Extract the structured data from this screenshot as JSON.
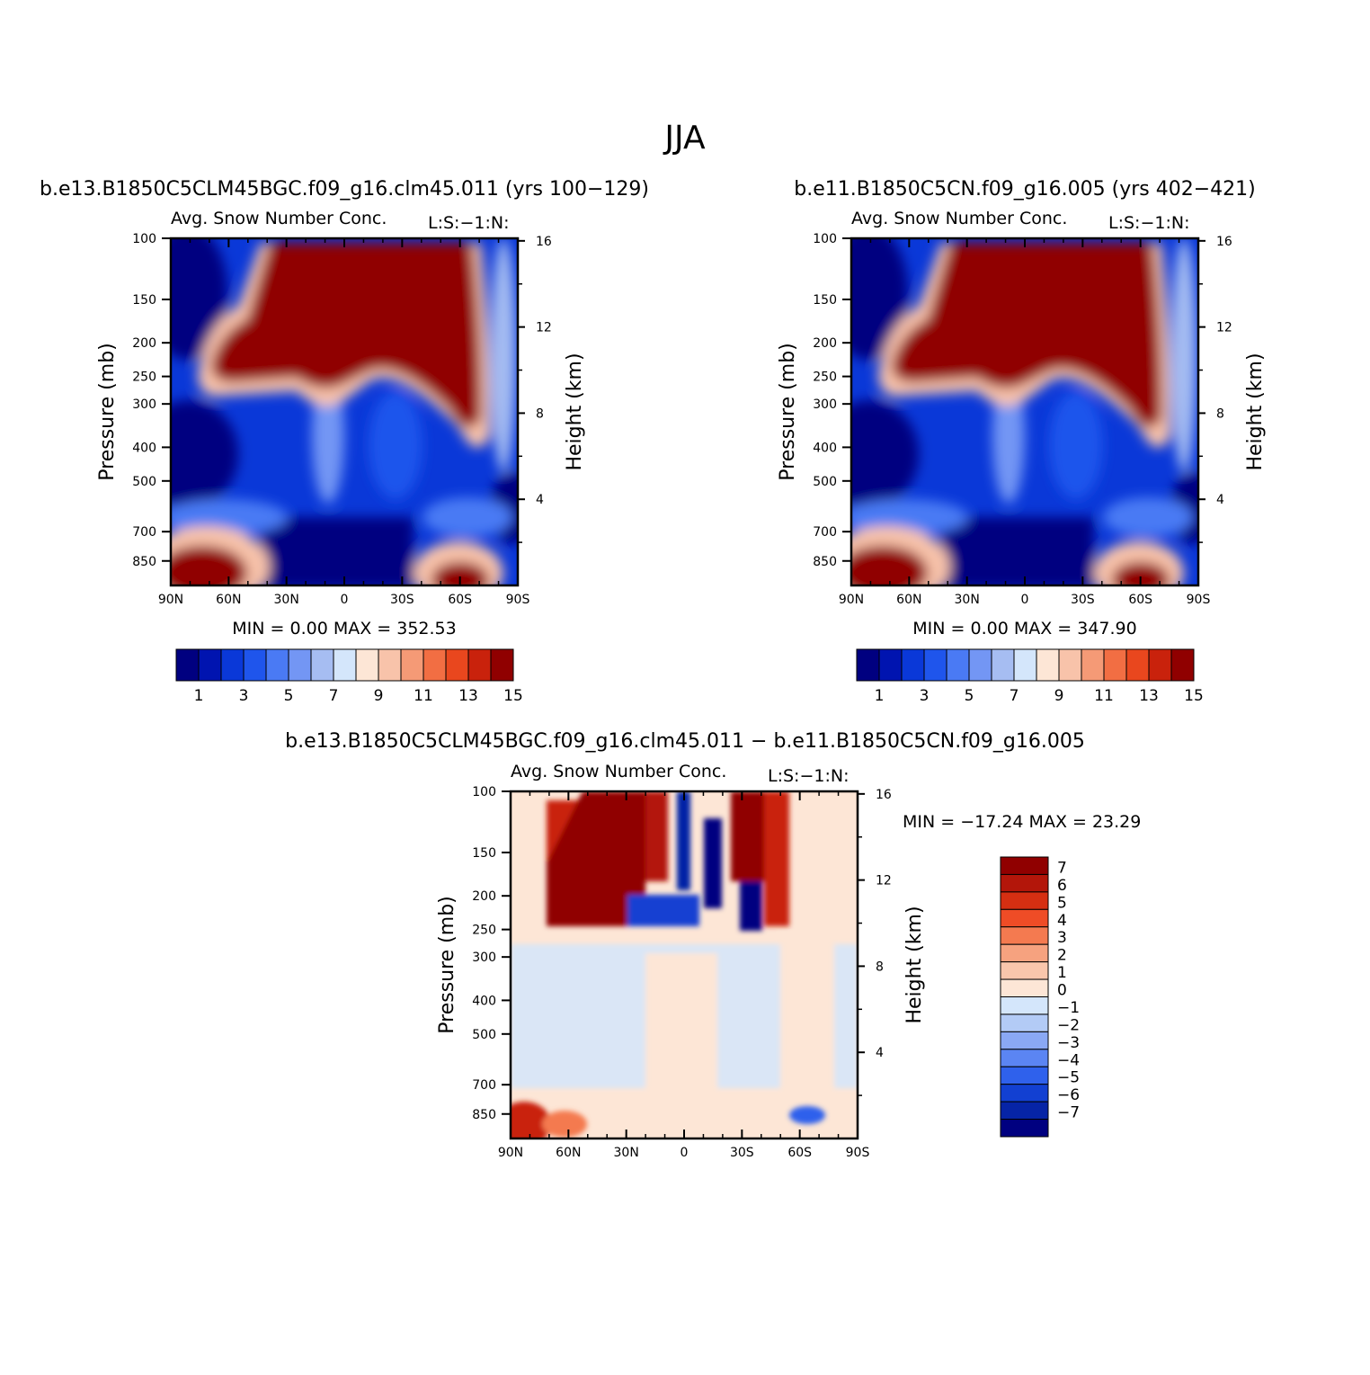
{
  "figure": {
    "title": "JJA"
  },
  "panels": [
    {
      "id": "top-left",
      "case_title": "b.e13.B1850C5CLM45BGC.f09_g16.clm45.011 (yrs 100−129)",
      "variable": "Avg. Snow Number Conc.",
      "units_tag": "L:S:−1:N:",
      "stats_text": "MIN =    0.00   MAX = 352.53",
      "min": 0.0,
      "max": 352.53
    },
    {
      "id": "top-right",
      "case_title": "b.e11.B1850C5CN.f09_g16.005 (yrs 402−421)",
      "variable": "Avg. Snow Number Conc.",
      "units_tag": "L:S:−1:N:",
      "stats_text": "MIN =    0.00   MAX = 347.90",
      "min": 0.0,
      "max": 347.9
    },
    {
      "id": "bottom-diff",
      "case_title": "b.e13.B1850C5CLM45BGC.f09_g16.clm45.011 − b.e11.B1850C5CN.f09_g16.005",
      "variable": "Avg. Snow Number Conc.",
      "units_tag": "L:S:−1:N:",
      "stats_text": "MIN = −17.24   MAX =   23.29",
      "min": -17.24,
      "max": 23.29
    }
  ],
  "axes": {
    "xlabel": "",
    "x_ticks": [
      "90N",
      "60N",
      "30N",
      "0",
      "30S",
      "60S",
      "90S"
    ],
    "x_values": [
      90,
      60,
      30,
      0,
      -30,
      -60,
      -90
    ],
    "ylabel_left": "Pressure (mb)",
    "y_ticks_left": [
      "100",
      "150",
      "200",
      "250",
      "300",
      "400",
      "500",
      "700",
      "850"
    ],
    "y_values_left": [
      100,
      150,
      200,
      250,
      300,
      400,
      500,
      700,
      850
    ],
    "ylabel_right": "Height (km)",
    "y_ticks_right": [
      "16",
      "12",
      "8",
      "4"
    ],
    "y_values_right": [
      16,
      12,
      8,
      4
    ],
    "ylim": [
      100,
      1000
    ]
  },
  "colorbars": {
    "abs": {
      "labels": [
        "1",
        "3",
        "5",
        "7",
        "9",
        "11",
        "13",
        "15"
      ],
      "levels": [
        1,
        2,
        3,
        4,
        5,
        6,
        7,
        8,
        9,
        10,
        11,
        12,
        13,
        14,
        15
      ],
      "colors": [
        "#000080",
        "#0014b0",
        "#0a38d8",
        "#1f55ec",
        "#4a7af4",
        "#7396f4",
        "#a6bdf2",
        "#d4e6fb",
        "#fde6d6",
        "#f8c3aa",
        "#f59a76",
        "#f26e43",
        "#e9471e",
        "#c9220c",
        "#900000"
      ]
    },
    "diff": {
      "labels": [
        "7",
        "6",
        "5",
        "4",
        "3",
        "2",
        "1",
        "0",
        "−1",
        "−2",
        "−3",
        "−4",
        "−5",
        "−6",
        "−7"
      ],
      "levels": [
        7,
        6,
        5,
        4,
        3,
        2,
        1,
        0,
        -1,
        -2,
        -3,
        -4,
        -5,
        -6,
        -7
      ],
      "colors": [
        "#900000",
        "#b3160a",
        "#d62f12",
        "#ef4c26",
        "#f47a50",
        "#f6a27f",
        "#f9c6ac",
        "#fde6d6",
        "#d4e6fb",
        "#b3cbf6",
        "#8aa8f4",
        "#5b85f3",
        "#2f61ec",
        "#1240d2",
        "#0624a6",
        "#000080"
      ]
    }
  },
  "chart_data": [
    {
      "type": "heatmap",
      "title": "b.e13.B1850C5CLM45BGC.f09_g16.clm45.011 (yrs 100−129)",
      "subtitle": "Avg. Snow Number Conc.",
      "x": [
        90,
        60,
        30,
        0,
        -30,
        -60,
        -90
      ],
      "ylabel": "Pressure (mb)",
      "ylim": [
        100,
        1000
      ],
      "min": 0.0,
      "max": 352.53,
      "levels": [
        1,
        2,
        3,
        4,
        5,
        6,
        7,
        8,
        9,
        10,
        11,
        12,
        13,
        14,
        15
      ]
    },
    {
      "type": "heatmap",
      "title": "b.e11.B1850C5CN.f09_g16.005 (yrs 402−421)",
      "subtitle": "Avg. Snow Number Conc.",
      "x": [
        90,
        60,
        30,
        0,
        -30,
        -60,
        -90
      ],
      "ylabel": "Pressure (mb)",
      "ylim": [
        100,
        1000
      ],
      "min": 0.0,
      "max": 347.9,
      "levels": [
        1,
        2,
        3,
        4,
        5,
        6,
        7,
        8,
        9,
        10,
        11,
        12,
        13,
        14,
        15
      ]
    },
    {
      "type": "heatmap",
      "title": "b.e13.B1850C5CLM45BGC.f09_g16.clm45.011 − b.e11.B1850C5CN.f09_g16.005",
      "subtitle": "Avg. Snow Number Conc.",
      "x": [
        90,
        60,
        30,
        0,
        -30,
        -60,
        -90
      ],
      "ylabel": "Pressure (mb)",
      "ylim": [
        100,
        1000
      ],
      "min": -17.24,
      "max": 23.29,
      "levels": [
        -7,
        -6,
        -5,
        -4,
        -3,
        -2,
        -1,
        0,
        1,
        2,
        3,
        4,
        5,
        6,
        7
      ]
    }
  ]
}
